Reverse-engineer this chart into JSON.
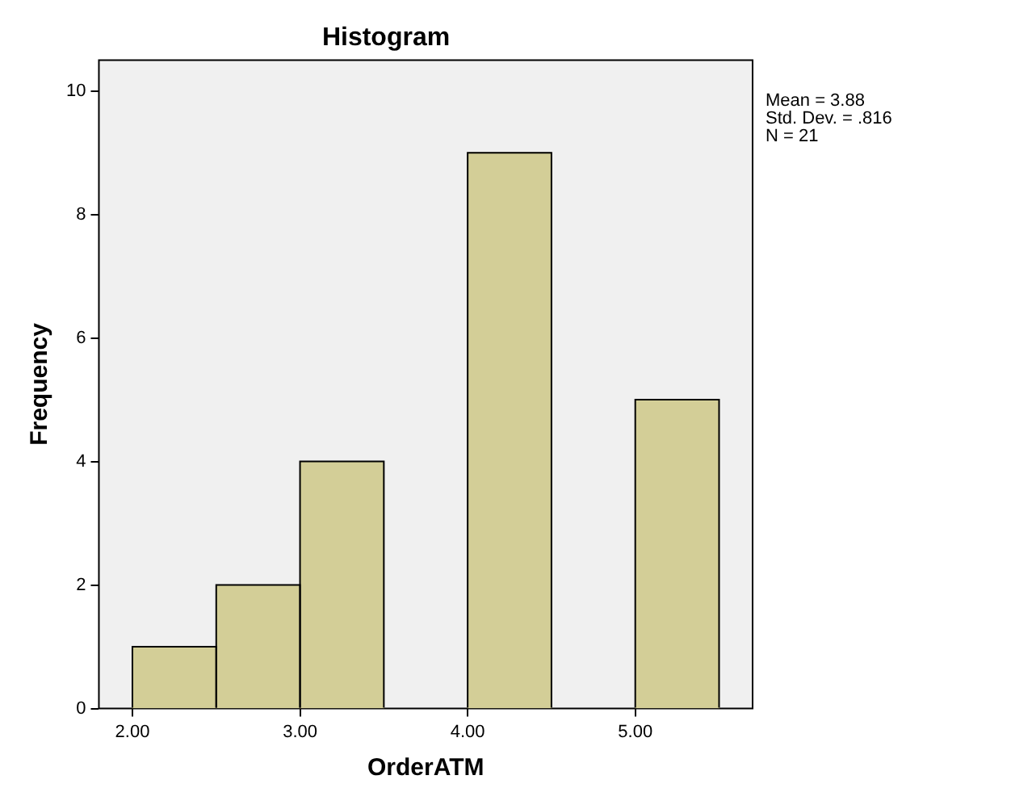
{
  "chart_data": {
    "type": "histogram",
    "title": "Histogram",
    "xlabel": "OrderATM",
    "ylabel": "Frequency",
    "bins": [
      2.0,
      2.5,
      3.0,
      3.5,
      4.0,
      4.5,
      5.0,
      5.5
    ],
    "values": [
      1,
      2,
      4,
      0,
      9,
      0,
      5
    ],
    "color": "#d3ce97",
    "xlim": [
      1.8,
      5.7
    ],
    "xticks": [
      {
        "value": 2,
        "label": "2.00"
      },
      {
        "value": 3,
        "label": "3.00"
      },
      {
        "value": 4,
        "label": "4.00"
      },
      {
        "value": 5,
        "label": "5.00"
      }
    ],
    "ylim": [
      0,
      10.5
    ],
    "yticks": [
      0,
      2,
      4,
      6,
      8,
      10
    ],
    "grid": false,
    "legend": false,
    "annotations": [
      "Mean = 3.88",
      "Std. Dev. = .816",
      "N = 21"
    ]
  }
}
